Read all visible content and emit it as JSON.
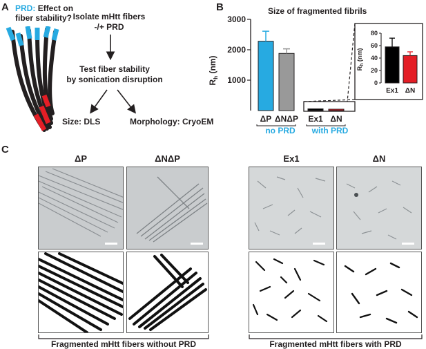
{
  "panel_a": {
    "letter": "A",
    "prd_label": "PRD:",
    "question_line1": "Effect on",
    "question_line2": "fiber stability?",
    "step1_line1": "Isolate mHtt fibers",
    "step1_line2": "-/+ PRD",
    "step2_line1": "Test fiber stability",
    "step2_line2": "by sonication disruption",
    "out_size": "Size: DLS",
    "out_morph": "Morphology: CryoEM",
    "colors": {
      "prd": "#27aae1",
      "fiber": "#231f20",
      "cut": "#e41e26"
    }
  },
  "panel_b": {
    "letter": "B",
    "title": "Size of fragmented fibrils",
    "group_no_prd": "no PRD",
    "group_with_prd": "with PRD",
    "colors": {
      "dp": "#27aae1",
      "dndp": "#999999",
      "ex1": "#000000",
      "dn": "#e41e26",
      "group_label": "#27aae1"
    }
  },
  "panel_c": {
    "letter": "C",
    "labels": [
      "ΔP",
      "ΔNΔP",
      "Ex1",
      "ΔN"
    ],
    "caption_without": "Fragmented mHtt fibers without PRD",
    "caption_with": "Fragmented mHtt fibers with PRD"
  },
  "chart_data": [
    {
      "type": "bar",
      "title": "Size of fragmented fibrils",
      "ylabel": "Rh (nm)",
      "ylabel_main": "R",
      "ylabel_sub": "h",
      "ylim": [
        0,
        3000
      ],
      "yticks": [
        "3000",
        "2000",
        "1000"
      ],
      "categories": [
        "ΔP",
        "ΔNΔP",
        "Ex1",
        "ΔN"
      ],
      "values": [
        2280,
        1880,
        58,
        44
      ],
      "errors": [
        330,
        150,
        14,
        6
      ]
    },
    {
      "type": "bar",
      "title": "",
      "ylabel": "Rh (nm)",
      "ylabel_main": "R",
      "ylabel_sub": "h",
      "ylim": [
        0,
        80
      ],
      "yticks": [
        "80",
        "60",
        "40",
        "20",
        "0"
      ],
      "categories": [
        "Ex1",
        "ΔN"
      ],
      "values": [
        58,
        44
      ],
      "errors": [
        14,
        6
      ]
    }
  ]
}
